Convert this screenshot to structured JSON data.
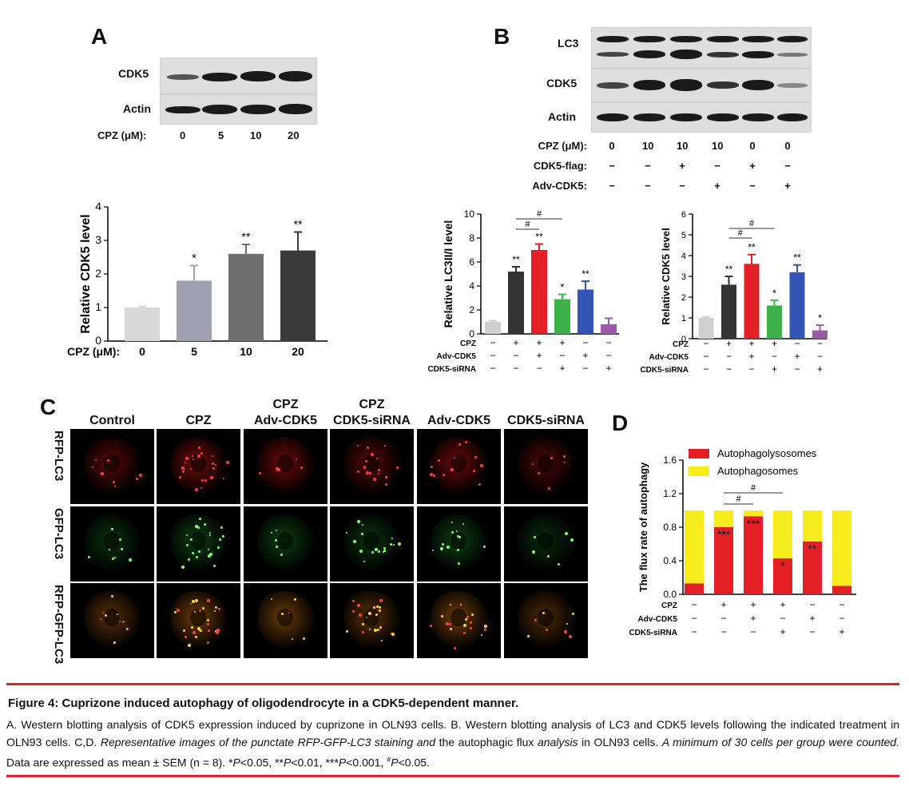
{
  "panel_a": {
    "letter": "A",
    "blot_rows": [
      "CDK5",
      "Actin"
    ],
    "cond_label": "CPZ (μM):",
    "cond_values": [
      "0",
      "5",
      "10",
      "20"
    ]
  },
  "panel_b": {
    "letter": "B",
    "blot_rows": [
      "LC3",
      "CDK5",
      "Actin"
    ],
    "cond_rows": [
      {
        "label": "CPZ (μM):",
        "values": [
          "0",
          "10",
          "10",
          "10",
          "0",
          "0"
        ]
      },
      {
        "label": "CDK5-flag:",
        "values": [
          "−",
          "−",
          "+",
          "−",
          "+",
          "−"
        ]
      },
      {
        "label": "Adv-CDK5:",
        "values": [
          "−",
          "−",
          "−",
          "+",
          "−",
          "+"
        ]
      }
    ]
  },
  "panel_c": {
    "letter": "C",
    "columns": [
      "Control",
      "CPZ",
      "CPZ\nAdv-CDK5",
      "CPZ\nCDK5-siRNA",
      "Adv-CDK5",
      "CDK5-siRNA"
    ],
    "rows": [
      "RFP-LC3",
      "GFP-LC3",
      "RFP-GFP-LC3"
    ]
  },
  "panel_d": {
    "letter": "D"
  },
  "caption": {
    "title": "Figure 4: Cuprizone induced autophagy of oligodendrocyte in a CDK5-dependent manner.",
    "seg1": "A. Western blotting analysis of CDK5 expression induced by cuprizone in OLN93 cells. B. Western blotting analysis of LC3 and CDK5 levels following the indicated treatment in OLN93 cells. C,D. ",
    "seg2": "Representative images of the punctate RFP-GFP-LC3 staining and",
    "seg3": " the autophagic flux ",
    "seg4": "analysis",
    "seg5": " in OLN93 cells. ",
    "seg6": "A minimum of 30 cells per group were counted.",
    "seg7": " Data are expressed as mean ± SEM (n = 8). *",
    "seg8": "P",
    "seg9": "<0.05, **",
    "seg10": "P",
    "seg11": "<0.01, ***",
    "seg12": "P",
    "seg13": "<0.001, ",
    "seg14": "#",
    "seg15": "P",
    "seg16": "<0.05."
  },
  "chart_data": [
    {
      "type": "bar",
      "ylabel": "Relative CDK5 level",
      "xlabel": "CPZ (μM):",
      "categories": [
        "0",
        "5",
        "10",
        "20"
      ],
      "values": [
        1.0,
        1.8,
        2.6,
        2.7
      ],
      "errors": [
        0.03,
        0.45,
        0.28,
        0.55
      ],
      "significance": [
        "",
        "*",
        "**",
        "**"
      ],
      "colors": [
        "#d8d8d8",
        "#a0a0b0",
        "#6e6e6e",
        "#3a3a3a"
      ],
      "ylim": [
        0,
        4
      ],
      "yticks": [
        "0",
        "1",
        "2",
        "3",
        "4"
      ]
    },
    {
      "type": "bar",
      "ylabel": "Relative LC3II/I level",
      "categories": [
        "1",
        "2",
        "3",
        "4",
        "5",
        "6"
      ],
      "values": [
        1.0,
        5.2,
        7.0,
        2.9,
        3.7,
        0.8
      ],
      "errors": [
        0.1,
        0.4,
        0.5,
        0.4,
        0.7,
        0.5
      ],
      "significance": [
        "",
        "**",
        "**",
        "*",
        "**",
        ""
      ],
      "colors": [
        "#cfcfcf",
        "#333333",
        "#e41f26",
        "#3fb34b",
        "#3355b5",
        "#9b5aa8"
      ],
      "ylim": [
        0,
        10
      ],
      "yticks": [
        "0",
        "2",
        "4",
        "6",
        "8",
        "10"
      ],
      "brackets": [
        {
          "from": 1,
          "to": 2,
          "label": "#"
        },
        {
          "from": 1,
          "to": 3,
          "label": "#"
        }
      ],
      "conditions": [
        {
          "label": "CPZ",
          "values": [
            "−",
            "+",
            "+",
            "+",
            "−",
            "−"
          ]
        },
        {
          "label": "Adv-CDK5",
          "values": [
            "−",
            "−",
            "+",
            "−",
            "+",
            "−"
          ]
        },
        {
          "label": "CDK5-siRNA",
          "values": [
            "−",
            "−",
            "−",
            "+",
            "−",
            "+"
          ]
        }
      ]
    },
    {
      "type": "bar",
      "ylabel": "Relative CDK5 level",
      "categories": [
        "1",
        "2",
        "3",
        "4",
        "5",
        "6"
      ],
      "values": [
        1.0,
        2.6,
        3.6,
        1.6,
        3.2,
        0.4
      ],
      "errors": [
        0.05,
        0.4,
        0.45,
        0.25,
        0.35,
        0.25
      ],
      "significance": [
        "",
        "**",
        "**",
        "*",
        "**",
        "*"
      ],
      "colors": [
        "#cfcfcf",
        "#333333",
        "#e41f26",
        "#3fb34b",
        "#3355b5",
        "#9b5aa8"
      ],
      "ylim": [
        0,
        6
      ],
      "yticks": [
        "0",
        "1",
        "2",
        "3",
        "4",
        "5",
        "6"
      ],
      "brackets": [
        {
          "from": 1,
          "to": 2,
          "label": "#"
        },
        {
          "from": 1,
          "to": 3,
          "label": "#"
        }
      ],
      "conditions": [
        {
          "label": "CPZ",
          "values": [
            "−",
            "+",
            "+",
            "+",
            "−",
            "−"
          ]
        },
        {
          "label": "Adv-CDK5",
          "values": [
            "−",
            "−",
            "+",
            "−",
            "+",
            "−"
          ]
        },
        {
          "label": "CDK5-siRNA",
          "values": [
            "−",
            "−",
            "−",
            "+",
            "−",
            "+"
          ]
        }
      ]
    },
    {
      "type": "bar",
      "stacked": true,
      "ylabel": "The flux rate of autophagy",
      "categories": [
        "1",
        "2",
        "3",
        "4",
        "5",
        "6"
      ],
      "series": [
        {
          "name": "Autophagolysosomes",
          "color": "#e41f26",
          "values": [
            0.13,
            0.8,
            0.93,
            0.43,
            0.63,
            0.1
          ]
        },
        {
          "name": "Autophagosomes",
          "color": "#f7ec1d",
          "values": [
            0.87,
            0.2,
            0.07,
            0.57,
            0.37,
            0.9
          ]
        }
      ],
      "significance": [
        "",
        "***",
        "***",
        "*",
        "**",
        ""
      ],
      "ylim": [
        0,
        1.6
      ],
      "yticks": [
        "0.0",
        "0.4",
        "0.8",
        "1.2",
        "1.6"
      ],
      "brackets": [
        {
          "from": 1,
          "to": 2,
          "label": "#"
        },
        {
          "from": 1,
          "to": 3,
          "label": "#"
        }
      ],
      "legend": "top-right",
      "conditions": [
        {
          "label": "CPZ",
          "values": [
            "−",
            "+",
            "+",
            "+",
            "−",
            "−"
          ]
        },
        {
          "label": "Adv-CDK5",
          "values": [
            "−",
            "−",
            "+",
            "−",
            "+",
            "−"
          ]
        },
        {
          "label": "CDK5-siRNA",
          "values": [
            "−",
            "−",
            "−",
            "+",
            "−",
            "+"
          ]
        }
      ]
    }
  ]
}
